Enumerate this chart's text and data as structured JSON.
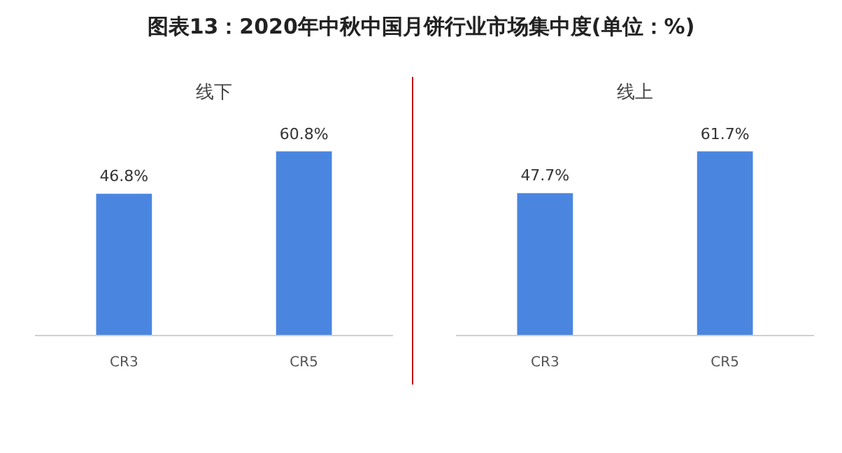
{
  "chart_data": [
    {
      "type": "bar",
      "title": "线下",
      "categories": [
        "CR3",
        "CR5"
      ],
      "values": [
        46.8,
        60.8
      ],
      "color": "#4a86e0",
      "tick_labels": "x",
      "data_labels": true,
      "value_labels": [
        "46.8%",
        "60.8%"
      ]
    },
    {
      "type": "bar",
      "title": "线上",
      "categories": [
        "CR3",
        "CR5"
      ],
      "values": [
        47.7,
        61.7
      ],
      "color": "#4a86e0",
      "tick_labels": "x",
      "data_labels": true,
      "value_labels": [
        "47.7%",
        "61.7%"
      ],
      "annotations": [
        "图表13：2020年中秋中国月饼行业市场集中度(单位：%)"
      ]
    }
  ]
}
